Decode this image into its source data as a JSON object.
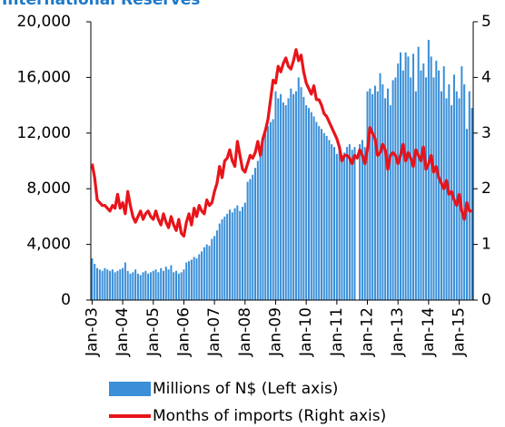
{
  "chart_data": {
    "type": "bar-line",
    "title": "International Reserves",
    "categories": [
      "Jan-03",
      null,
      null,
      null,
      null,
      null,
      null,
      null,
      null,
      null,
      null,
      null,
      "Jan-04",
      null,
      null,
      null,
      null,
      null,
      null,
      null,
      null,
      null,
      null,
      null,
      "Jan-05",
      null,
      null,
      null,
      null,
      null,
      null,
      null,
      null,
      null,
      null,
      null,
      "Jan-06",
      null,
      null,
      null,
      null,
      null,
      null,
      null,
      null,
      null,
      null,
      null,
      "Jan-07",
      null,
      null,
      null,
      null,
      null,
      null,
      null,
      null,
      null,
      null,
      null,
      "Jan-08",
      null,
      null,
      null,
      null,
      null,
      null,
      null,
      null,
      null,
      null,
      null,
      "Jan-09",
      null,
      null,
      null,
      null,
      null,
      null,
      null,
      null,
      null,
      null,
      null,
      "Jan-10",
      null,
      null,
      null,
      null,
      null,
      null,
      null,
      null,
      null,
      null,
      null,
      "Jan-11",
      null,
      null,
      null,
      null,
      null,
      null,
      null,
      null,
      null,
      null,
      null,
      "Jan-12",
      null,
      null,
      null,
      null,
      null,
      null,
      null,
      null,
      null,
      null,
      null,
      "Jan-13",
      null,
      null,
      null,
      null,
      null,
      null,
      null,
      null,
      null,
      null,
      null,
      "Jan-14",
      null,
      null,
      null,
      null,
      null,
      null,
      null,
      null,
      null,
      null,
      null,
      "Jan-15",
      null,
      null,
      null,
      null,
      null
    ],
    "series": [
      {
        "name": "Millions of N$ (Left axis)",
        "color": "#3a8fd8",
        "kind": "bar",
        "values": [
          3000,
          2600,
          2300,
          2200,
          2100,
          2300,
          2200,
          2100,
          2200,
          2000,
          2100,
          2200,
          2300,
          2700,
          2100,
          1900,
          2000,
          2200,
          1900,
          1800,
          2000,
          2100,
          1900,
          2000,
          2100,
          2200,
          2000,
          2300,
          2100,
          2400,
          2200,
          2500,
          2000,
          2100,
          1900,
          2000,
          2200,
          2700,
          2800,
          2900,
          3100,
          3000,
          3300,
          3500,
          3800,
          4000,
          3900,
          4400,
          4600,
          5000,
          5500,
          5800,
          6000,
          6200,
          6500,
          6300,
          6600,
          6800,
          6400,
          6700,
          7000,
          8500,
          8700,
          9000,
          9500,
          10000,
          10500,
          11500,
          12000,
          12500,
          12800,
          13000,
          15000,
          14500,
          14800,
          14200,
          14000,
          14500,
          15200,
          14800,
          15000,
          16000,
          15300,
          14600,
          14000,
          13800,
          13500,
          13200,
          12800,
          12500,
          12300,
          12000,
          11800,
          11500,
          11200,
          11000,
          10500,
          10800,
          10200,
          10600,
          11000,
          11200,
          10800,
          11000,
          null,
          11200,
          11500,
          11000,
          15000,
          15200,
          14800,
          15400,
          15000,
          16300,
          15500,
          14500,
          15200,
          14000,
          15800,
          16000,
          17000,
          17800,
          16500,
          17800,
          17500,
          16000,
          17700,
          15000,
          18200,
          16500,
          17000,
          16000,
          18700,
          17500,
          16000,
          17200,
          16500,
          15000,
          16800,
          14500,
          15500,
          14000,
          16200,
          15000,
          14500,
          16800,
          15500,
          12300,
          15000,
          13800
        ]
      },
      {
        "name": "Months of imports (Right axis)",
        "color": "#e8141a",
        "kind": "line",
        "axis": "y2",
        "values": [
          2.45,
          2.2,
          1.8,
          1.75,
          1.7,
          1.7,
          1.65,
          1.6,
          1.7,
          1.65,
          1.9,
          1.65,
          1.75,
          1.55,
          1.95,
          1.7,
          1.5,
          1.4,
          1.5,
          1.6,
          1.45,
          1.55,
          1.6,
          1.5,
          1.45,
          1.6,
          1.45,
          1.35,
          1.55,
          1.4,
          1.3,
          1.5,
          1.35,
          1.25,
          1.45,
          1.2,
          1.15,
          1.4,
          1.55,
          1.35,
          1.65,
          1.5,
          1.7,
          1.6,
          1.55,
          1.8,
          1.7,
          1.75,
          1.95,
          2.1,
          2.4,
          2.2,
          2.5,
          2.55,
          2.7,
          2.5,
          2.4,
          2.85,
          2.6,
          2.35,
          2.3,
          2.45,
          2.6,
          2.55,
          2.65,
          2.85,
          2.6,
          2.9,
          3.05,
          3.25,
          3.6,
          3.95,
          3.9,
          4.2,
          4.1,
          4.25,
          4.35,
          4.2,
          4.15,
          4.3,
          4.5,
          4.3,
          4.4,
          4.1,
          3.9,
          3.8,
          3.7,
          3.85,
          3.6,
          3.6,
          3.5,
          3.35,
          3.3,
          3.2,
          3.1,
          3.0,
          2.9,
          2.75,
          2.5,
          2.6,
          2.6,
          2.55,
          2.45,
          2.6,
          2.55,
          2.7,
          2.6,
          2.45,
          2.7,
          3.1,
          3.0,
          2.9,
          2.6,
          2.65,
          2.8,
          2.7,
          2.35,
          2.6,
          2.65,
          2.6,
          2.45,
          2.6,
          2.8,
          2.5,
          2.65,
          2.55,
          2.4,
          2.7,
          2.6,
          2.5,
          2.75,
          2.35,
          2.45,
          2.6,
          2.3,
          2.4,
          2.2,
          2.1,
          2.0,
          2.15,
          1.9,
          1.95,
          1.8,
          1.7,
          1.9,
          1.6,
          1.45,
          1.75,
          1.6,
          1.6
        ]
      }
    ],
    "ylim": [
      0,
      20000
    ],
    "yticks": [
      {
        "value": 0,
        "label": "0"
      },
      {
        "value": 4000,
        "label": "4,000"
      },
      {
        "value": 8000,
        "label": "8,000"
      },
      {
        "value": 12000,
        "label": "12,000"
      },
      {
        "value": 16000,
        "label": "16,000"
      },
      {
        "value": 20000,
        "label": "20,000"
      }
    ],
    "y2lim": [
      0,
      5
    ],
    "y2ticks": [
      0,
      1,
      2,
      3,
      4,
      5
    ]
  }
}
